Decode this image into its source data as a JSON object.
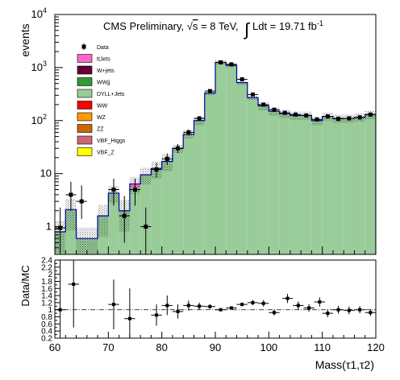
{
  "chart_data": [
    {
      "type": "bar",
      "panel": "main",
      "ylabel": "events",
      "yscale": "log",
      "ylim": [
        0.3,
        10000
      ],
      "xlim": [
        60,
        120
      ],
      "bin_width": 2,
      "y_ticks": [
        {
          "value": 1,
          "label": "1"
        },
        {
          "value": 10,
          "label": "10"
        },
        {
          "value": 100,
          "label": "10",
          "exp": "2"
        },
        {
          "value": 1000,
          "label": "10",
          "exp": "3"
        },
        {
          "value": 10000,
          "label": "10",
          "exp": "4"
        }
      ],
      "header": {
        "text1": "CMS Preliminary, ",
        "sqrt_sym": "√",
        "s_sym": "s",
        "energy": " = 8 TeV, ",
        "integral": "∫",
        "lumi": " Ldt = 19.71 fb",
        "lumi_exp": "-1"
      },
      "legend": {
        "placement": "top-left",
        "entries": [
          {
            "label": "Data",
            "kind": "marker",
            "color": "#000000"
          },
          {
            "label": "ttJets",
            "kind": "box",
            "color": "#ff66cc"
          },
          {
            "label": "W+jets",
            "kind": "box",
            "color": "#660033"
          },
          {
            "label": "WWjj",
            "kind": "box",
            "color": "#339933"
          },
          {
            "label": "DYLL+Jets",
            "kind": "box",
            "color": "#99cc99"
          },
          {
            "label": "WW",
            "kind": "box",
            "color": "#ff0000"
          },
          {
            "label": "WZ",
            "kind": "box",
            "color": "#ff9900"
          },
          {
            "label": "ZZ",
            "kind": "box",
            "color": "#cc6600"
          },
          {
            "label": "VBF_Higgs",
            "kind": "box",
            "color": "#cc6677"
          },
          {
            "label": "VBF_Z",
            "kind": "box",
            "color": "#ffff00"
          }
        ]
      },
      "mc_bins": [
        {
          "x": 60,
          "dy": 0.8,
          "tt": 0
        },
        {
          "x": 62,
          "dy": 2.1,
          "tt": 0
        },
        {
          "x": 64,
          "dy": 0.6,
          "tt": 0
        },
        {
          "x": 66,
          "dy": 0.6,
          "tt": 0
        },
        {
          "x": 68,
          "dy": 1.6,
          "tt": 0
        },
        {
          "x": 70,
          "dy": 4.3,
          "tt": 0
        },
        {
          "x": 72,
          "dy": 2.0,
          "tt": 0
        },
        {
          "x": 74,
          "dy": 5.5,
          "tt": 0.9
        },
        {
          "x": 76,
          "dy": 9.5,
          "tt": 0
        },
        {
          "x": 78,
          "dy": 12.5,
          "tt": 0
        },
        {
          "x": 80,
          "dy": 17.0,
          "tt": 0
        },
        {
          "x": 82,
          "dy": 30,
          "tt": 0
        },
        {
          "x": 84,
          "dy": 55,
          "tt": 0
        },
        {
          "x": 86,
          "dy": 100,
          "tt": 0
        },
        {
          "x": 88,
          "dy": 330,
          "tt": 0
        },
        {
          "x": 90,
          "dy": 1250,
          "tt": 0
        },
        {
          "x": 92,
          "dy": 1100,
          "tt": 0
        },
        {
          "x": 94,
          "dy": 520,
          "tt": 0
        },
        {
          "x": 96,
          "dy": 270,
          "tt": 0
        },
        {
          "x": 98,
          "dy": 190,
          "tt": 0
        },
        {
          "x": 100,
          "dy": 150,
          "tt": 0
        },
        {
          "x": 102,
          "dy": 135,
          "tt": 0
        },
        {
          "x": 104,
          "dy": 125,
          "tt": 0
        },
        {
          "x": 106,
          "dy": 125,
          "tt": 0
        },
        {
          "x": 108,
          "dy": 100,
          "tt": 0
        },
        {
          "x": 110,
          "dy": 120,
          "tt": 0
        },
        {
          "x": 112,
          "dy": 110,
          "tt": 0
        },
        {
          "x": 114,
          "dy": 110,
          "tt": 0
        },
        {
          "x": 116,
          "dy": 115,
          "tt": 0
        },
        {
          "x": 118,
          "dy": 130,
          "tt": 0
        }
      ],
      "data_points": [
        {
          "x": 61,
          "y": 0.95,
          "up": 2.3,
          "lo": 0.3
        },
        {
          "x": 63,
          "y": 4.0,
          "up": 7.0,
          "lo": 2.0
        },
        {
          "x": 65,
          "y": 3.0,
          "up": 6.0,
          "lo": 1.4
        },
        {
          "x": 71,
          "y": 5.0,
          "up": 8.0,
          "lo": 2.5
        },
        {
          "x": 73,
          "y": 1.6,
          "up": 3.8,
          "lo": 0.5
        },
        {
          "x": 75,
          "y": 5.0,
          "up": 8.0,
          "lo": 2.5
        },
        {
          "x": 77,
          "y": 1.0,
          "up": 2.3,
          "lo": 0.3
        },
        {
          "x": 79,
          "y": 12.0,
          "up": 16.0,
          "lo": 8.5
        },
        {
          "x": 81,
          "y": 19.0,
          "up": 24.0,
          "lo": 14.5
        },
        {
          "x": 83,
          "y": 30.0,
          "up": 36.0,
          "lo": 24.5
        },
        {
          "x": 85,
          "y": 60.0,
          "up": 68.0,
          "lo": 52.0
        },
        {
          "x": 87,
          "y": 110.0,
          "up": 121.0,
          "lo": 99.0
        },
        {
          "x": 89,
          "y": 360.0,
          "up": 380.0,
          "lo": 340.0
        },
        {
          "x": 91,
          "y": 1250.0,
          "up": 1290.0,
          "lo": 1210.0
        },
        {
          "x": 93,
          "y": 1150.0,
          "up": 1190.0,
          "lo": 1110.0
        },
        {
          "x": 95,
          "y": 600.0,
          "up": 625.0,
          "lo": 575.0
        },
        {
          "x": 97,
          "y": 310.0,
          "up": 328.0,
          "lo": 292.0
        },
        {
          "x": 99,
          "y": 200.0,
          "up": 215.0,
          "lo": 186.0
        },
        {
          "x": 101,
          "y": 160.0,
          "up": 173.0,
          "lo": 147.0
        },
        {
          "x": 103,
          "y": 140.0,
          "up": 152.0,
          "lo": 128.0
        },
        {
          "x": 105,
          "y": 130.0,
          "up": 142.0,
          "lo": 118.0
        },
        {
          "x": 107,
          "y": 125.0,
          "up": 137.0,
          "lo": 114.0
        },
        {
          "x": 109,
          "y": 105.0,
          "up": 116.0,
          "lo": 95.0
        },
        {
          "x": 111,
          "y": 120.0,
          "up": 131.0,
          "lo": 109.0
        },
        {
          "x": 113,
          "y": 108.0,
          "up": 119.0,
          "lo": 98.0
        },
        {
          "x": 115,
          "y": 110.0,
          "up": 121.0,
          "lo": 100.0
        },
        {
          "x": 117,
          "y": 115.0,
          "up": 126.0,
          "lo": 104.0
        },
        {
          "x": 119,
          "y": 130.0,
          "up": 142.0,
          "lo": 118.0
        }
      ]
    },
    {
      "type": "scatter",
      "panel": "ratio",
      "ylabel": "Data/MC",
      "xlabel": "Mass(τ1,τ2)",
      "ylim": [
        0.2,
        2.4
      ],
      "xlim": [
        60,
        120
      ],
      "reference_line": 1.0,
      "y_ticks": [
        "0.2",
        "0.4",
        "0.6",
        "0.8",
        "1",
        "1.2",
        "1.4",
        "1.6",
        "1.8",
        "2",
        "2.2",
        "2.4"
      ],
      "x_ticks": [
        "60",
        "70",
        "80",
        "90",
        "100",
        "110",
        "120"
      ],
      "points": [
        {
          "x": 61,
          "y": 1.0,
          "up": 2.4,
          "lo": 0.2
        },
        {
          "x": 63.5,
          "y": 1.72,
          "up": 2.4,
          "lo": 0.5
        },
        {
          "x": 71,
          "y": 1.15,
          "up": 1.85,
          "lo": 0.45
        },
        {
          "x": 74,
          "y": 0.75,
          "up": 1.6,
          "lo": 0.2
        },
        {
          "x": 79,
          "y": 0.85,
          "up": 1.15,
          "lo": 0.55
        },
        {
          "x": 81,
          "y": 1.12,
          "up": 1.4,
          "lo": 0.85
        },
        {
          "x": 83,
          "y": 0.95,
          "up": 1.15,
          "lo": 0.75
        },
        {
          "x": 85,
          "y": 1.12,
          "up": 1.26,
          "lo": 0.98
        },
        {
          "x": 87,
          "y": 1.1,
          "up": 1.2,
          "lo": 1.0
        },
        {
          "x": 89,
          "y": 1.09,
          "up": 1.15,
          "lo": 1.03
        },
        {
          "x": 91,
          "y": 1.0,
          "up": 1.03,
          "lo": 0.97
        },
        {
          "x": 93,
          "y": 1.05,
          "up": 1.08,
          "lo": 1.02
        },
        {
          "x": 95,
          "y": 1.15,
          "up": 1.2,
          "lo": 1.1
        },
        {
          "x": 97,
          "y": 1.2,
          "up": 1.27,
          "lo": 1.13
        },
        {
          "x": 99,
          "y": 1.18,
          "up": 1.27,
          "lo": 1.09
        },
        {
          "x": 101,
          "y": 0.92,
          "up": 1.0,
          "lo": 0.84
        },
        {
          "x": 103.5,
          "y": 1.32,
          "up": 1.45,
          "lo": 1.19
        },
        {
          "x": 105.5,
          "y": 1.12,
          "up": 1.23,
          "lo": 1.01
        },
        {
          "x": 107.5,
          "y": 1.05,
          "up": 1.16,
          "lo": 0.94
        },
        {
          "x": 109.5,
          "y": 1.22,
          "up": 1.35,
          "lo": 1.09
        },
        {
          "x": 111,
          "y": 0.9,
          "up": 1.01,
          "lo": 0.79
        },
        {
          "x": 113,
          "y": 1.0,
          "up": 1.11,
          "lo": 0.89
        },
        {
          "x": 115,
          "y": 0.98,
          "up": 1.09,
          "lo": 0.87
        },
        {
          "x": 117,
          "y": 1.0,
          "up": 1.1,
          "lo": 0.9
        },
        {
          "x": 119,
          "y": 0.92,
          "up": 1.02,
          "lo": 0.82
        }
      ]
    }
  ],
  "colors": {
    "dy_fill": "#99cc99",
    "outline": "#000099",
    "hatch": "#000000",
    "tt_fill": "#ff66cc"
  }
}
